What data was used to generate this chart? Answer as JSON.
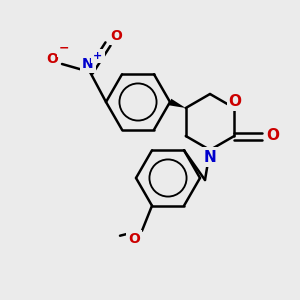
{
  "bg_color": "#ebebeb",
  "bond_color": "#000000",
  "bond_width": 1.8,
  "atom_colors": {
    "O": "#cc0000",
    "N": "#0000cc",
    "C": "#000000"
  },
  "font_size": 10,
  "font_size_small": 9
}
